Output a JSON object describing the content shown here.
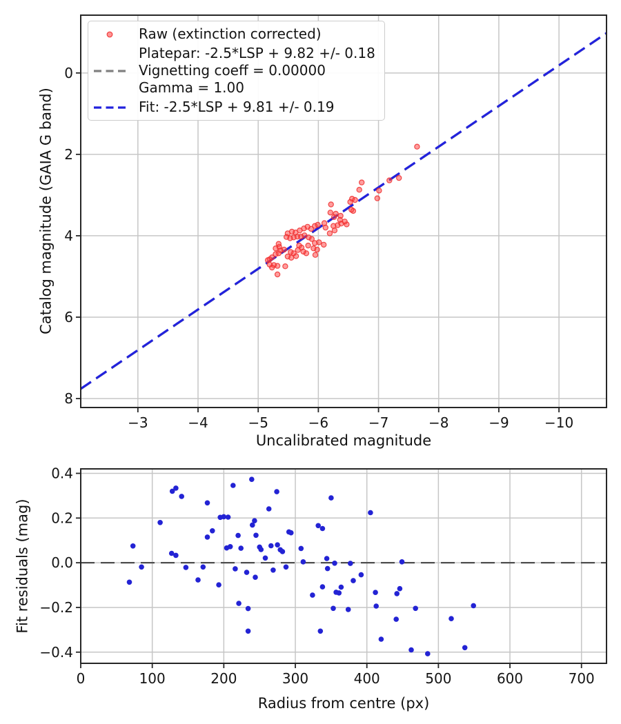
{
  "figure": {
    "background": "#ffffff"
  },
  "chart_data": [
    {
      "type": "scatter",
      "title": "",
      "xlabel": "Uncalibrated magnitude",
      "ylabel": "Catalog magnitude (GAIA G band)",
      "x_axis_inverted": true,
      "y_axis_inverted": true,
      "xlim": [
        -2.05,
        -10.79
      ],
      "ylim": [
        -1.42,
        8.22
      ],
      "x_ticks": [
        -3,
        -4,
        -5,
        -6,
        -7,
        -8,
        -9,
        -10
      ],
      "x_tick_labels": [
        "−3",
        "−4",
        "−5",
        "−6",
        "−7",
        "−8",
        "−9",
        "−10"
      ],
      "y_ticks": [
        0,
        2,
        4,
        6,
        8
      ],
      "y_tick_labels": [
        "0",
        "2",
        "4",
        "6",
        "8"
      ],
      "grid": true,
      "legend": {
        "position": "upper left",
        "entries": [
          {
            "marker": "dot",
            "color": "#f44336",
            "label": "Raw (extinction corrected)"
          },
          {
            "marker": "dashed-line",
            "color": "#808080",
            "lines": [
              "Platepar: -2.5*LSP + 9.82 +/- 0.18",
              "Vignetting coeff = 0.00000",
              "Gamma = 1.00"
            ]
          },
          {
            "marker": "dashed-line",
            "color": "#2222dd",
            "label": "Fit: -2.5*LSP + 9.81 +/- 0.19"
          }
        ]
      },
      "lines": [
        {
          "name": "platepar",
          "style": "dashed",
          "color": "#808080",
          "slope": 1,
          "intercept": 9.82
        },
        {
          "name": "fit",
          "style": "dashed",
          "color": "#2222dd",
          "slope": 1,
          "intercept": 9.81
        }
      ],
      "series": [
        {
          "name": "Raw (extinction corrected)",
          "color": "#ff3c3c",
          "points": [
            [
              -7.64,
              1.81
            ],
            [
              -7.34,
              2.58
            ],
            [
              -7.18,
              2.64
            ],
            [
              -7.01,
              2.89
            ],
            [
              -6.98,
              3.08
            ],
            [
              -6.72,
              2.69
            ],
            [
              -6.68,
              2.87
            ],
            [
              -6.56,
              3.09
            ],
            [
              -6.61,
              3.12
            ],
            [
              -6.53,
              3.17
            ],
            [
              -6.58,
              3.39
            ],
            [
              -6.55,
              3.36
            ],
            [
              -6.47,
              3.72
            ],
            [
              -6.44,
              3.65
            ],
            [
              -6.38,
              3.7
            ],
            [
              -6.37,
              3.51
            ],
            [
              -6.36,
              3.61
            ],
            [
              -6.32,
              3.74
            ],
            [
              -6.29,
              3.46
            ],
            [
              -6.27,
              3.87
            ],
            [
              -6.26,
              3.54
            ],
            [
              -6.25,
              3.76
            ],
            [
              -6.21,
              3.23
            ],
            [
              -6.2,
              3.43
            ],
            [
              -6.19,
              3.94
            ],
            [
              -6.12,
              3.8
            ],
            [
              -6.1,
              3.69
            ],
            [
              -6.09,
              4.22
            ],
            [
              -6.01,
              4.16
            ],
            [
              -5.99,
              3.73
            ],
            [
              -5.98,
              4.34
            ],
            [
              -5.95,
              4.47
            ],
            [
              -5.94,
              3.76
            ],
            [
              -5.94,
              4.18
            ],
            [
              -5.92,
              4.31
            ],
            [
              -5.89,
              4.08
            ],
            [
              -5.88,
              3.83
            ],
            [
              -5.84,
              4.04
            ],
            [
              -5.83,
              4.24
            ],
            [
              -5.82,
              3.78
            ],
            [
              -5.8,
              4.43
            ],
            [
              -5.77,
              3.99
            ],
            [
              -5.76,
              3.82
            ],
            [
              -5.75,
              4.39
            ],
            [
              -5.72,
              4.29
            ],
            [
              -5.71,
              4.02
            ],
            [
              -5.69,
              3.87
            ],
            [
              -5.68,
              4.24
            ],
            [
              -5.66,
              4.35
            ],
            [
              -5.65,
              4.02
            ],
            [
              -5.63,
              4.5
            ],
            [
              -5.62,
              3.92
            ],
            [
              -5.59,
              4.04
            ],
            [
              -5.59,
              4.43
            ],
            [
              -5.56,
              3.9
            ],
            [
              -5.55,
              4.54
            ],
            [
              -5.54,
              4.4
            ],
            [
              -5.53,
              4.06
            ],
            [
              -5.49,
              3.94
            ],
            [
              -5.49,
              4.51
            ],
            [
              -5.47,
              4.03
            ],
            [
              -5.45,
              4.75
            ],
            [
              -5.43,
              4.34
            ],
            [
              -5.37,
              4.36
            ],
            [
              -5.35,
              4.27
            ],
            [
              -5.34,
              4.2
            ],
            [
              -5.34,
              4.43
            ],
            [
              -5.32,
              4.74
            ],
            [
              -5.32,
              4.95
            ],
            [
              -5.29,
              4.31
            ],
            [
              -5.29,
              4.45
            ],
            [
              -5.26,
              4.72
            ],
            [
              -5.23,
              4.53
            ],
            [
              -5.23,
              4.78
            ],
            [
              -5.19,
              4.58
            ],
            [
              -5.19,
              4.71
            ],
            [
              -5.16,
              4.6
            ]
          ]
        }
      ]
    },
    {
      "type": "scatter",
      "title": "",
      "xlabel": "Radius from centre (px)",
      "ylabel": "Fit residuals (mag)",
      "xlim": [
        0,
        735
      ],
      "ylim": [
        0.42,
        -0.45
      ],
      "x_ticks": [
        0,
        100,
        200,
        300,
        400,
        500,
        600,
        700
      ],
      "x_tick_labels": [
        "0",
        "100",
        "200",
        "300",
        "400",
        "500",
        "600",
        "700"
      ],
      "y_ticks": [
        0.4,
        0.2,
        0.0,
        -0.2,
        -0.4
      ],
      "y_tick_labels": [
        "0.4",
        "0.2",
        "0.0",
        "−0.2",
        "−0.4"
      ],
      "grid": true,
      "lines": [
        {
          "name": "zero",
          "style": "dashed",
          "color": "#4d4d4d",
          "slope": 0,
          "intercept": 0
        }
      ],
      "series": [
        {
          "name": "Fit residuals",
          "color": "#2323d4",
          "points": [
            [
              68,
              -0.087
            ],
            [
              73,
              0.075
            ],
            [
              85,
              -0.019
            ],
            [
              111,
              0.18
            ],
            [
              127,
              0.042
            ],
            [
              128,
              0.32
            ],
            [
              133,
              0.334
            ],
            [
              133,
              0.033
            ],
            [
              141,
              0.297
            ],
            [
              147,
              -0.021
            ],
            [
              164,
              -0.077
            ],
            [
              171,
              -0.019
            ],
            [
              177,
              0.268
            ],
            [
              177,
              0.115
            ],
            [
              184,
              0.143
            ],
            [
              193,
              -0.099
            ],
            [
              195,
              0.203
            ],
            [
              200,
              0.206
            ],
            [
              204,
              0.066
            ],
            [
              206,
              0.204
            ],
            [
              209,
              0.072
            ],
            [
              213,
              0.346
            ],
            [
              216,
              -0.027
            ],
            [
              220,
              0.122
            ],
            [
              221,
              -0.182
            ],
            [
              224,
              0.065
            ],
            [
              232,
              -0.043
            ],
            [
              234,
              -0.205
            ],
            [
              234,
              -0.306
            ],
            [
              239,
              0.373
            ],
            [
              240,
              0.169
            ],
            [
              243,
              0.188
            ],
            [
              244,
              -0.065
            ],
            [
              245,
              0.123
            ],
            [
              250,
              0.07
            ],
            [
              252,
              0.059
            ],
            [
              258,
              0.021
            ],
            [
              263,
              0.241
            ],
            [
              266,
              0.076
            ],
            [
              269,
              -0.033
            ],
            [
              274,
              0.318
            ],
            [
              275,
              0.08
            ],
            [
              279,
              0.058
            ],
            [
              282,
              0.05
            ],
            [
              287,
              -0.019
            ],
            [
              291,
              0.138
            ],
            [
              294,
              0.134
            ],
            [
              308,
              0.064
            ],
            [
              311,
              0.004
            ],
            [
              324,
              -0.145
            ],
            [
              332,
              0.166
            ],
            [
              335,
              -0.306
            ],
            [
              338,
              0.153
            ],
            [
              338,
              -0.108
            ],
            [
              344,
              0.019
            ],
            [
              345,
              -0.026
            ],
            [
              350,
              0.29
            ],
            [
              353,
              -0.204
            ],
            [
              355,
              -0.002
            ],
            [
              357,
              -0.132
            ],
            [
              361,
              -0.135
            ],
            [
              364,
              -0.109
            ],
            [
              374,
              -0.209
            ],
            [
              377,
              -0.003
            ],
            [
              381,
              -0.08
            ],
            [
              392,
              -0.054
            ],
            [
              405,
              0.224
            ],
            [
              412,
              -0.133
            ],
            [
              413,
              -0.194
            ],
            [
              420,
              -0.342
            ],
            [
              441,
              -0.253
            ],
            [
              442,
              -0.138
            ],
            [
              446,
              -0.116
            ],
            [
              449,
              0.004
            ],
            [
              462,
              -0.39
            ],
            [
              468,
              -0.204
            ],
            [
              485,
              -0.407
            ],
            [
              518,
              -0.25
            ],
            [
              537,
              -0.38
            ],
            [
              549,
              -0.192
            ]
          ]
        }
      ]
    }
  ]
}
